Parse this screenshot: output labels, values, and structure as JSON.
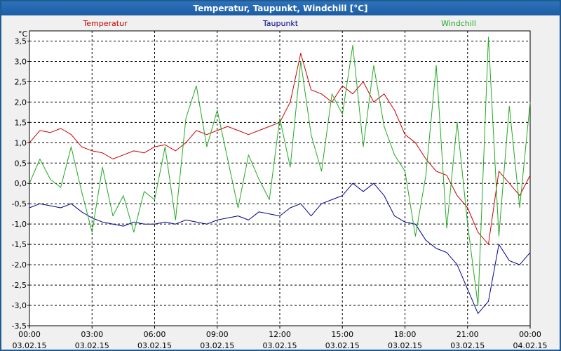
{
  "window": {
    "title": "Temperatur, Taupunkt, Windchill [°C]"
  },
  "chart_data": {
    "type": "line",
    "title": "Temperatur, Taupunkt, Windchill [°C]",
    "ylabel": "°C",
    "ylim": [
      -3.5,
      3.75
    ],
    "xlim": [
      0,
      24
    ],
    "grid": true,
    "y_ticks": [
      {
        "value": 3.5,
        "label": "3,5"
      },
      {
        "value": 3.0,
        "label": "3,0"
      },
      {
        "value": 2.5,
        "label": "2,5"
      },
      {
        "value": 2.0,
        "label": "2,0"
      },
      {
        "value": 1.5,
        "label": "1,5"
      },
      {
        "value": 1.0,
        "label": "1,0"
      },
      {
        "value": 0.5,
        "label": "0,5"
      },
      {
        "value": 0.0,
        "label": "0,0"
      },
      {
        "value": -0.5,
        "label": "-0,5"
      },
      {
        "value": -1.0,
        "label": "-1,0"
      },
      {
        "value": -1.5,
        "label": "-1,5"
      },
      {
        "value": -2.0,
        "label": "-2,0"
      },
      {
        "value": -2.5,
        "label": "-2,5"
      },
      {
        "value": -3.0,
        "label": "-3,0"
      },
      {
        "value": -3.5,
        "label": "-3,5"
      }
    ],
    "x_ticks": [
      {
        "value": 0,
        "time": "00:00",
        "date": "03.02.15"
      },
      {
        "value": 3,
        "time": "03:00",
        "date": "03.02.15"
      },
      {
        "value": 6,
        "time": "06:00",
        "date": "03.02.15"
      },
      {
        "value": 9,
        "time": "09:00",
        "date": "03.02.15"
      },
      {
        "value": 12,
        "time": "12:00",
        "date": "03.02.15"
      },
      {
        "value": 15,
        "time": "15:00",
        "date": "03.02.15"
      },
      {
        "value": 18,
        "time": "18:00",
        "date": "03.02.15"
      },
      {
        "value": 21,
        "time": "21:00",
        "date": "03.02.15"
      },
      {
        "value": 24,
        "time": "00:00",
        "date": "04.02.15"
      }
    ],
    "series": [
      {
        "name": "Temperatur",
        "color": "#cc0000",
        "x": [
          0,
          0.5,
          1,
          1.5,
          2,
          2.5,
          3,
          3.5,
          4,
          4.5,
          5,
          5.5,
          6,
          6.5,
          7,
          7.5,
          8,
          8.5,
          9,
          9.5,
          10,
          10.5,
          11,
          11.5,
          12,
          12.5,
          13,
          13.5,
          14,
          14.5,
          15,
          15.5,
          16,
          16.5,
          17,
          17.5,
          18,
          18.5,
          19,
          19.5,
          20,
          20.5,
          21,
          21.5,
          22,
          22.5,
          23,
          23.5,
          24
        ],
        "values": [
          1.0,
          1.3,
          1.25,
          1.35,
          1.2,
          0.9,
          0.8,
          0.75,
          0.6,
          0.7,
          0.8,
          0.75,
          0.9,
          0.95,
          0.8,
          1.0,
          1.3,
          1.2,
          1.3,
          1.4,
          1.3,
          1.2,
          1.3,
          1.4,
          1.5,
          2.0,
          3.2,
          2.3,
          2.2,
          2.0,
          2.4,
          2.2,
          2.5,
          2.0,
          2.2,
          1.8,
          1.2,
          1.0,
          0.6,
          0.3,
          0.2,
          -0.3,
          -0.6,
          -1.2,
          -1.5,
          0.3,
          0.0,
          -0.3,
          0.2
        ]
      },
      {
        "name": "Taupunkt",
        "color": "#00008b",
        "x": [
          0,
          0.5,
          1,
          1.5,
          2,
          2.5,
          3,
          3.5,
          4,
          4.5,
          5,
          5.5,
          6,
          6.5,
          7,
          7.5,
          8,
          8.5,
          9,
          9.5,
          10,
          10.5,
          11,
          11.5,
          12,
          12.5,
          13,
          13.5,
          14,
          14.5,
          15,
          15.5,
          16,
          16.5,
          17,
          17.5,
          18,
          18.5,
          19,
          19.5,
          20,
          20.5,
          21,
          21.5,
          22,
          22.5,
          23,
          23.5,
          24
        ],
        "values": [
          -0.6,
          -0.5,
          -0.55,
          -0.6,
          -0.5,
          -0.7,
          -0.85,
          -0.95,
          -1.0,
          -1.05,
          -0.95,
          -1.0,
          -1.0,
          -0.95,
          -1.0,
          -0.9,
          -0.95,
          -1.0,
          -0.9,
          -0.85,
          -0.8,
          -0.9,
          -0.7,
          -0.75,
          -0.8,
          -0.6,
          -0.5,
          -0.8,
          -0.5,
          -0.4,
          -0.3,
          0.0,
          -0.2,
          0.0,
          -0.3,
          -0.8,
          -0.95,
          -1.0,
          -1.4,
          -1.6,
          -1.7,
          -2.0,
          -2.6,
          -3.2,
          -2.9,
          -1.5,
          -1.9,
          -2.0,
          -1.7
        ]
      },
      {
        "name": "Windchill",
        "color": "#22aa22",
        "x": [
          0,
          0.5,
          1,
          1.5,
          2,
          2.5,
          3,
          3.5,
          4,
          4.5,
          5,
          5.5,
          6,
          6.5,
          7,
          7.5,
          8,
          8.5,
          9,
          9.5,
          10,
          10.5,
          11,
          11.5,
          12,
          12.5,
          13,
          13.5,
          14,
          14.5,
          15,
          15.5,
          16,
          16.5,
          17,
          17.5,
          18,
          18.5,
          19,
          19.5,
          20,
          20.5,
          21,
          21.5,
          22,
          22.5,
          23,
          23.5,
          24
        ],
        "values": [
          0.0,
          0.6,
          0.1,
          -0.1,
          0.9,
          -0.2,
          -1.2,
          0.4,
          -0.8,
          -0.3,
          -1.2,
          -0.2,
          -0.4,
          0.9,
          -0.9,
          1.6,
          2.4,
          0.9,
          1.8,
          0.6,
          -0.6,
          0.7,
          0.1,
          -0.4,
          1.6,
          0.4,
          3.0,
          1.2,
          0.3,
          2.2,
          1.7,
          3.4,
          0.9,
          2.9,
          1.4,
          0.7,
          0.3,
          -1.3,
          0.2,
          2.9,
          -1.1,
          1.5,
          -1.0,
          -3.0,
          3.6,
          -1.3,
          1.9,
          -0.6,
          2.0
        ]
      }
    ]
  }
}
